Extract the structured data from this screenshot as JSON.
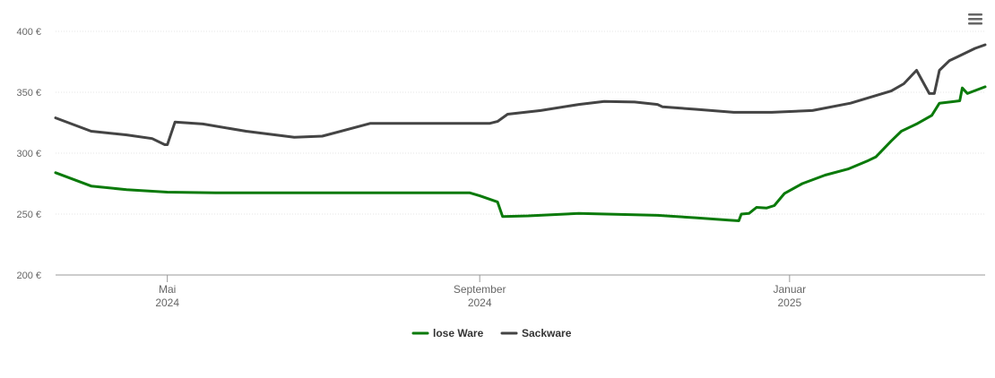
{
  "chart_data": {
    "type": "line",
    "title": "",
    "xlabel": "",
    "ylabel": "",
    "ylim": [
      200,
      400
    ],
    "y_ticks": [
      {
        "value": 200,
        "label": "200 €"
      },
      {
        "value": 250,
        "label": "250 €"
      },
      {
        "value": 300,
        "label": "300 €"
      },
      {
        "value": 350,
        "label": "350 €"
      },
      {
        "value": 400,
        "label": "400 €"
      }
    ],
    "xlim": [
      "2024-03-18",
      "2025-03-19"
    ],
    "x_ticks": [
      {
        "date": "2024-05-01",
        "line1": "Mai",
        "line2": "2024"
      },
      {
        "date": "2024-09-01",
        "line1": "September",
        "line2": "2024"
      },
      {
        "date": "2025-01-01",
        "line1": "Januar",
        "line2": "2025"
      }
    ],
    "grid": true,
    "legend_position": "bottom-center",
    "series": [
      {
        "name": "lose Ware",
        "color": "#0a7a0a",
        "points": [
          [
            "2024-03-18",
            284
          ],
          [
            "2024-04-01",
            273
          ],
          [
            "2024-04-15",
            270
          ],
          [
            "2024-05-01",
            268
          ],
          [
            "2024-05-20",
            267.5
          ],
          [
            "2024-06-15",
            267.5
          ],
          [
            "2024-07-15",
            267.5
          ],
          [
            "2024-08-15",
            267.5
          ],
          [
            "2024-08-28",
            267.5
          ],
          [
            "2024-09-01",
            265
          ],
          [
            "2024-09-08",
            260
          ],
          [
            "2024-09-10",
            248
          ],
          [
            "2024-09-20",
            248.5
          ],
          [
            "2024-10-10",
            250.5
          ],
          [
            "2024-11-10",
            249
          ],
          [
            "2024-11-25",
            247
          ],
          [
            "2024-12-08",
            245
          ],
          [
            "2024-12-12",
            244.5
          ],
          [
            "2024-12-13",
            250
          ],
          [
            "2024-12-16",
            250.5
          ],
          [
            "2024-12-19",
            255.5
          ],
          [
            "2024-12-23",
            255
          ],
          [
            "2024-12-26",
            257
          ],
          [
            "2024-12-30",
            267
          ],
          [
            "2025-01-06",
            275
          ],
          [
            "2025-01-15",
            282
          ],
          [
            "2025-01-24",
            287
          ],
          [
            "2025-02-01",
            294
          ],
          [
            "2025-02-04",
            297
          ],
          [
            "2025-02-10",
            310
          ],
          [
            "2025-02-14",
            318
          ],
          [
            "2025-02-20",
            324
          ],
          [
            "2025-02-26",
            331
          ],
          [
            "2025-03-01",
            341
          ],
          [
            "2025-03-07",
            342.5
          ],
          [
            "2025-03-09",
            343
          ],
          [
            "2025-03-10",
            353.5
          ],
          [
            "2025-03-12",
            349
          ],
          [
            "2025-03-19",
            354.5
          ]
        ]
      },
      {
        "name": "Sackware",
        "color": "#444444",
        "points": [
          [
            "2024-03-18",
            329
          ],
          [
            "2024-04-01",
            318
          ],
          [
            "2024-04-15",
            315
          ],
          [
            "2024-04-25",
            312
          ],
          [
            "2024-04-30",
            307
          ],
          [
            "2024-05-01",
            307
          ],
          [
            "2024-05-04",
            325.5
          ],
          [
            "2024-05-15",
            324
          ],
          [
            "2024-06-01",
            318
          ],
          [
            "2024-06-20",
            313
          ],
          [
            "2024-07-01",
            314
          ],
          [
            "2024-07-20",
            324.5
          ],
          [
            "2024-08-01",
            324.5
          ],
          [
            "2024-08-20",
            324.5
          ],
          [
            "2024-09-05",
            324.5
          ],
          [
            "2024-09-08",
            326
          ],
          [
            "2024-09-12",
            332
          ],
          [
            "2024-09-25",
            335
          ],
          [
            "2024-10-10",
            340
          ],
          [
            "2024-10-20",
            342.5
          ],
          [
            "2024-11-01",
            342
          ],
          [
            "2024-11-10",
            340
          ],
          [
            "2024-11-12",
            338
          ],
          [
            "2024-11-25",
            336
          ],
          [
            "2024-12-10",
            333.5
          ],
          [
            "2024-12-25",
            333.5
          ],
          [
            "2025-01-10",
            335
          ],
          [
            "2025-01-25",
            341
          ],
          [
            "2025-02-10",
            351
          ],
          [
            "2025-02-15",
            357
          ],
          [
            "2025-02-20",
            368
          ],
          [
            "2025-02-25",
            349
          ],
          [
            "2025-02-27",
            349
          ],
          [
            "2025-03-01",
            368
          ],
          [
            "2025-03-05",
            376
          ],
          [
            "2025-03-08",
            379
          ],
          [
            "2025-03-15",
            386
          ],
          [
            "2025-03-19",
            389
          ]
        ]
      }
    ]
  },
  "menu": {
    "icon": "hamburger-menu-icon"
  }
}
